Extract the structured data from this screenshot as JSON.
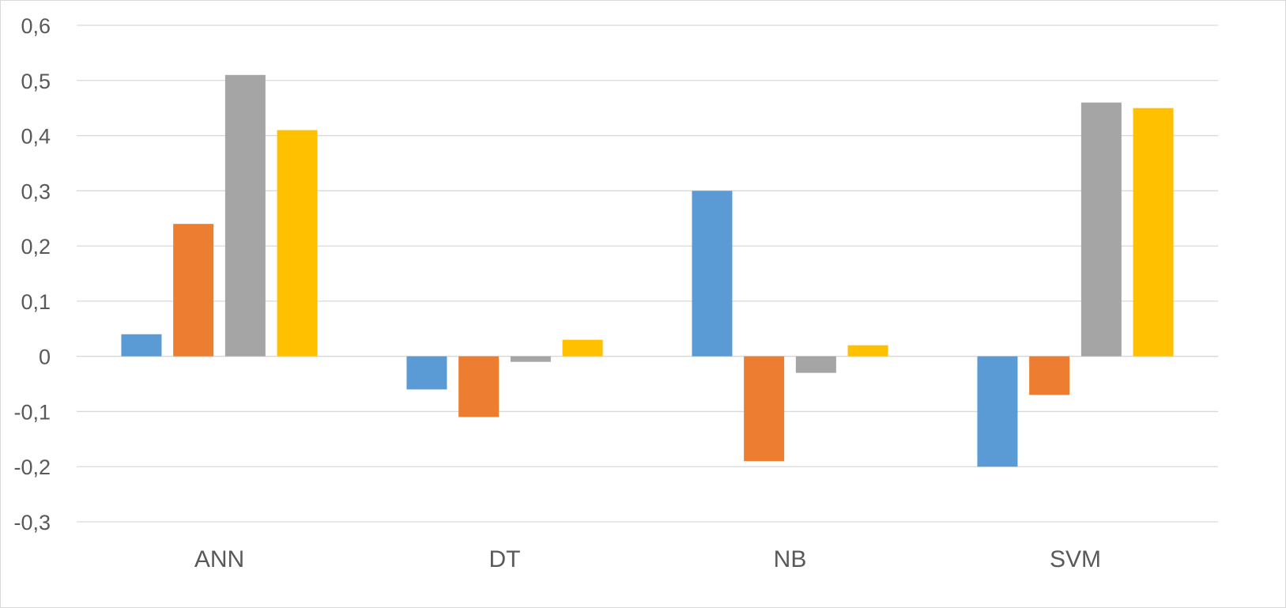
{
  "chart_data": {
    "type": "bar",
    "title": "",
    "xlabel": "",
    "ylabel": "",
    "categories": [
      "ANN",
      "DT",
      "NB",
      "SVM"
    ],
    "series": [
      {
        "values": [
          0.04,
          -0.06,
          0.3,
          -0.2
        ],
        "color": "#5B9BD5"
      },
      {
        "values": [
          0.24,
          -0.11,
          -0.19,
          -0.07
        ],
        "color": "#ED7D31"
      },
      {
        "values": [
          0.51,
          -0.01,
          -0.03,
          0.46
        ],
        "color": "#A5A5A5"
      },
      {
        "values": [
          0.41,
          0.03,
          0.02,
          0.45
        ],
        "color": "#FFC000"
      }
    ],
    "ylim": [
      -0.3,
      0.6
    ],
    "yticks": [
      0.6,
      0.5,
      0.4,
      0.3,
      0.2,
      0.1,
      0,
      -0.1,
      -0.2,
      -0.3
    ],
    "ytick_labels": [
      "0,6",
      "0,5",
      "0,4",
      "0,3",
      "0,2",
      "0,1",
      "0",
      "-0,1",
      "-0,2",
      "-0,3"
    ],
    "grid": true,
    "legend": "none"
  }
}
